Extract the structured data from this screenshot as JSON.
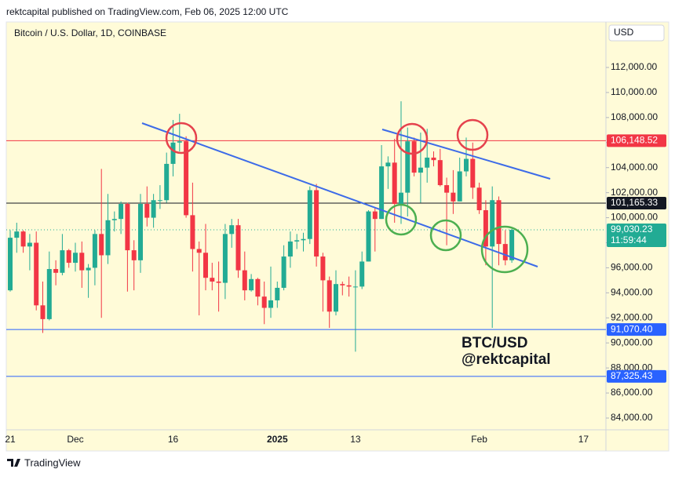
{
  "header": {
    "publisher": "rektcapital published on TradingView.com, Feb 06, 2025 12:00 UTC"
  },
  "footer": {
    "brand": "TradingView"
  },
  "chart_data": {
    "type": "candlestick",
    "title": "Bitcoin / U.S. Dollar, 1D, COINBASE",
    "currency": "USD",
    "annotations": [
      "BTC/USD",
      "@rektcapital"
    ],
    "up_color": "#22ab94",
    "down_color": "#f23645",
    "categories": [
      "21",
      null,
      null,
      null,
      null,
      null,
      null,
      null,
      null,
      null,
      "Dec",
      null,
      null,
      null,
      null,
      null,
      null,
      null,
      null,
      null,
      null,
      null,
      null,
      null,
      null,
      "16",
      null,
      null,
      null,
      null,
      null,
      null,
      null,
      null,
      null,
      null,
      null,
      null,
      null,
      null,
      null,
      "2025",
      null,
      null,
      null,
      null,
      null,
      null,
      null,
      null,
      null,
      null,
      null,
      "13",
      null,
      null,
      null,
      null,
      null,
      null,
      null,
      null,
      null,
      null,
      null,
      null,
      null,
      null,
      null,
      null,
      null,
      null,
      "Feb",
      null,
      null,
      null,
      null,
      null,
      null,
      null,
      null,
      null,
      null,
      null,
      null,
      null,
      null,
      null,
      "17"
    ],
    "open": [
      94200,
      98400,
      98900,
      97700,
      98000,
      93000,
      91900,
      95900,
      95600,
      97400,
      96400,
      97200,
      95800,
      96000,
      98700,
      97000,
      99800,
      99900,
      101100,
      97400,
      96600,
      101100,
      100000,
      101400,
      101400,
      104300,
      106000,
      106100,
      100200,
      97500,
      97200,
      95200,
      94900,
      94800,
      98700,
      99400,
      95800,
      94200,
      95100,
      93700,
      92800,
      93400,
      94400,
      96900,
      98100,
      98200,
      98300,
      102200,
      96900,
      95000,
      92500,
      94700,
      94600,
      94500,
      94500,
      96500,
      100500,
      99900,
      104100,
      104400,
      101100,
      102000,
      106100,
      103600,
      104000,
      104800,
      104600,
      102600,
      102000,
      101300,
      103700,
      104700,
      102400,
      100600,
      97700,
      101400,
      97900,
      96600,
      null,
      null,
      null,
      null,
      null,
      null,
      null,
      null,
      null,
      null,
      null
    ],
    "high": [
      99000,
      99600,
      99000,
      98700,
      98900,
      94900,
      97300,
      96600,
      98700,
      97500,
      98000,
      98100,
      96300,
      99000,
      103900,
      101900,
      100500,
      101300,
      101200,
      98200,
      101900,
      102500,
      101900,
      102600,
      105200,
      107800,
      108300,
      106500,
      102800,
      98100,
      99500,
      96400,
      96500,
      99500,
      99900,
      99900,
      97300,
      95500,
      95200,
      94900,
      96100,
      94900,
      97800,
      98900,
      98700,
      98800,
      102500,
      102700,
      97200,
      95300,
      95800,
      94900,
      95300,
      95800,
      97300,
      100600,
      100800,
      105800,
      104900,
      106300,
      109300,
      107200,
      106400,
      106800,
      107100,
      105300,
      105500,
      103200,
      103800,
      104800,
      106400,
      106000,
      102800,
      101400,
      102500,
      101700,
      99000,
      99100,
      null,
      null,
      null,
      null,
      null,
      null,
      null,
      null,
      null,
      null,
      null
    ],
    "low": [
      94100,
      97200,
      97200,
      95800,
      92600,
      90800,
      91800,
      94600,
      95400,
      96000,
      95700,
      94400,
      93600,
      94600,
      92000,
      96300,
      98900,
      98700,
      94100,
      94200,
      95600,
      99300,
      99200,
      100700,
      101200,
      103300,
      105300,
      100000,
      95700,
      92200,
      94200,
      94200,
      92500,
      93500,
      97600,
      95200,
      93400,
      94100,
      93000,
      91500,
      92000,
      92800,
      94200,
      96000,
      97500,
      97300,
      97900,
      96100,
      92500,
      91200,
      92200,
      93800,
      93700,
      89300,
      94300,
      96500,
      97300,
      99900,
      102300,
      99600,
      99500,
      100100,
      103300,
      101200,
      102800,
      104100,
      102500,
      97800,
      100300,
      101300,
      103300,
      101500,
      100300,
      96200,
      91200,
      96200,
      96200,
      96400,
      null,
      null,
      null,
      null,
      null,
      null,
      null,
      null,
      null,
      null,
      null
    ],
    "close": [
      98400,
      98900,
      97700,
      98000,
      93000,
      91900,
      95900,
      95600,
      97400,
      96400,
      97200,
      95800,
      96000,
      98700,
      97000,
      99800,
      99900,
      101100,
      97400,
      96600,
      101100,
      100000,
      101400,
      101400,
      104300,
      106000,
      106100,
      100200,
      97500,
      97200,
      95200,
      94900,
      94800,
      98700,
      99400,
      95800,
      94200,
      95100,
      93700,
      92800,
      93400,
      94400,
      96900,
      98100,
      98200,
      98300,
      102200,
      96900,
      95000,
      92500,
      94700,
      94600,
      94500,
      94500,
      96500,
      100500,
      99900,
      104100,
      104400,
      101100,
      102000,
      106100,
      103600,
      104000,
      104800,
      104600,
      102600,
      102000,
      101300,
      103700,
      104700,
      102400,
      100600,
      97700,
      101400,
      97900,
      96600,
      99030.23,
      null,
      null,
      null,
      null,
      null,
      null,
      null,
      null,
      null,
      null,
      null
    ],
    "ylim": [
      83060,
      116010
    ],
    "yticks": [
      {
        "value": 84000,
        "label": "84,000.00"
      },
      {
        "value": 86000,
        "label": "86,000.00"
      },
      {
        "value": 88000,
        "label": "88,000.00"
      },
      {
        "value": 90000,
        "label": "90,000.00"
      },
      {
        "value": 92000,
        "label": "92,000.00"
      },
      {
        "value": 94000,
        "label": "94,000.00"
      },
      {
        "value": 96000,
        "label": "96,000.00"
      },
      {
        "value": 98000,
        "label": "98,000.00"
      },
      {
        "value": 100000,
        "label": "100,000.00"
      },
      {
        "value": 102000,
        "label": "102,000.00"
      },
      {
        "value": 104000,
        "label": "104,000.00"
      },
      {
        "value": 106000,
        "label": "106,000.00"
      },
      {
        "value": 108000,
        "label": "108,000.00"
      },
      {
        "value": 110000,
        "label": "110,000.00"
      },
      {
        "value": 112000,
        "label": "112,000.00"
      }
    ],
    "grid": false,
    "price_lines": [
      {
        "value": 106148.52,
        "label": "106,148.52",
        "color": "#f23645"
      },
      {
        "value": 101165.33,
        "label": "101,165.33",
        "color": "#131722"
      },
      {
        "value": 99030.23,
        "label": "99,030.23",
        "color": "#22ab94",
        "countdown": "11:59:44",
        "style": "dotted"
      },
      {
        "value": 91070.4,
        "label": "91,070.40",
        "color": "#2962ff"
      },
      {
        "value": 87325.43,
        "label": "87,325.43",
        "color": "#2962ff"
      }
    ]
  }
}
